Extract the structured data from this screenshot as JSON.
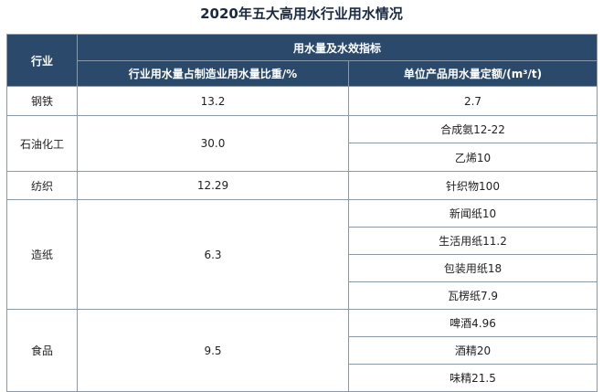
{
  "title": "2020年五大高用水行业用水情况",
  "headers": {
    "industry": "行业",
    "group": "用水量及水效指标",
    "share": "行业用水量占制造业用水量比重/%",
    "quota": "单位产品用水量定额/(m³/t)"
  },
  "rows": [
    {
      "industry": "钢铁",
      "share": "13.2",
      "quotas": [
        "2.7"
      ]
    },
    {
      "industry": "石油化工",
      "share": "30.0",
      "quotas": [
        "合成氨12-22",
        "乙烯10"
      ]
    },
    {
      "industry": "纺织",
      "share": "12.29",
      "quotas": [
        "针织物100"
      ]
    },
    {
      "industry": "造纸",
      "share": "6.3",
      "quotas": [
        "新闻纸10",
        "生活用纸11.2",
        "包装用纸18",
        "瓦楞纸7.9"
      ]
    },
    {
      "industry": "食品",
      "share": "9.5",
      "quotas": [
        "啤酒4.96",
        "酒精20",
        "味精21.5"
      ]
    }
  ]
}
